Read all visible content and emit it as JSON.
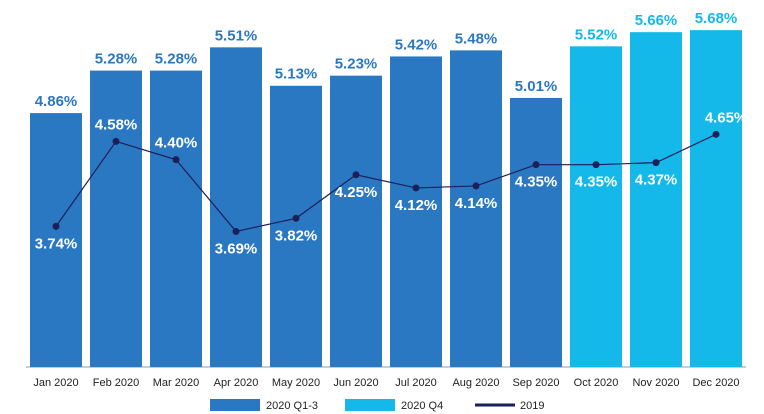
{
  "chart_data": {
    "type": "bar",
    "categories": [
      "Jan 2020",
      "Feb 2020",
      "Mar 2020",
      "Apr 2020",
      "May 2020",
      "Jun 2020",
      "Jul 2020",
      "Aug 2020",
      "Sep 2020",
      "Oct 2020",
      "Nov 2020",
      "Dec 2020"
    ],
    "series": [
      {
        "name": "2020 Q1-3",
        "color": "#2b78c2",
        "type": "bar",
        "values": [
          4.86,
          5.28,
          5.28,
          5.51,
          5.13,
          5.23,
          5.42,
          5.48,
          5.01,
          null,
          null,
          null
        ],
        "value_labels": [
          "4.86%",
          "5.28%",
          "5.28%",
          "5.51%",
          "5.13%",
          "5.23%",
          "5.42%",
          "5.48%",
          "5.01%",
          null,
          null,
          null
        ]
      },
      {
        "name": "2020 Q4",
        "color": "#14b9e9",
        "type": "bar",
        "values": [
          null,
          null,
          null,
          null,
          null,
          null,
          null,
          null,
          null,
          5.52,
          5.66,
          5.68
        ],
        "value_labels": [
          null,
          null,
          null,
          null,
          null,
          null,
          null,
          null,
          null,
          "5.52%",
          "5.66%",
          "5.68%"
        ]
      },
      {
        "name": "2019",
        "color": "#1c1f5a",
        "type": "line",
        "values": [
          3.74,
          4.58,
          4.4,
          3.69,
          3.82,
          4.25,
          4.12,
          4.14,
          4.35,
          4.35,
          4.37,
          4.65
        ],
        "value_labels": [
          "3.74%",
          "4.58%",
          "4.40%",
          "3.69%",
          "3.82%",
          "4.25%",
          "4.12%",
          "4.14%",
          "4.35%",
          "4.35%",
          "4.37%",
          "4.65%"
        ]
      }
    ],
    "ylim": [
      2.35,
      5.8
    ],
    "grid": false,
    "legend": "bottom"
  }
}
